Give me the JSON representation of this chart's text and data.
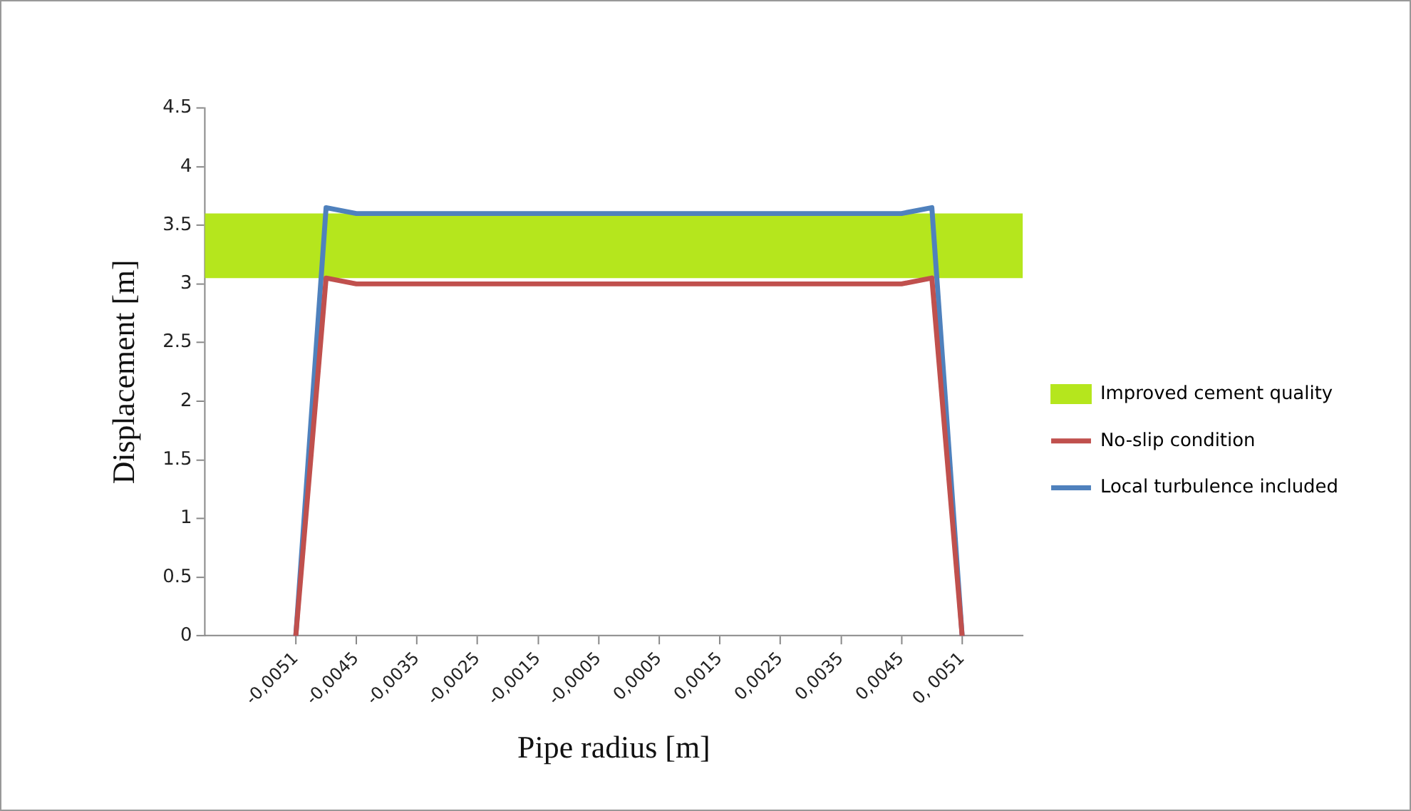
{
  "chart_data": {
    "type": "line",
    "xlabel": "Pipe radius [m]",
    "ylabel": "Displacement [m]",
    "categories": [
      null,
      null,
      null,
      "-0,0051",
      null,
      "-0,0045",
      null,
      "-0,0035",
      null,
      "-0,0025",
      null,
      "-0,0015",
      null,
      "-0,0005",
      null,
      "0,0005",
      null,
      "0,0015",
      null,
      "0,0025",
      null,
      "0,0035",
      null,
      "0,0045",
      null,
      "0, 0051",
      null,
      null
    ],
    "series": [
      {
        "name": "No-slip condition",
        "type": "line",
        "color": "#c0504d",
        "values": [
          null,
          null,
          null,
          0,
          3.05,
          3.0,
          3.0,
          3.0,
          3.0,
          3.0,
          3.0,
          3.0,
          3.0,
          3.0,
          3.0,
          3.0,
          3.0,
          3.0,
          3.0,
          3.0,
          3.0,
          3.0,
          3.0,
          3.0,
          3.05,
          0,
          null,
          null
        ]
      },
      {
        "name": "Local turbulence included",
        "type": "line",
        "color": "#4f81bd",
        "values": [
          null,
          null,
          null,
          0,
          3.65,
          3.6,
          3.6,
          3.6,
          3.6,
          3.6,
          3.6,
          3.6,
          3.6,
          3.6,
          3.6,
          3.6,
          3.6,
          3.6,
          3.6,
          3.6,
          3.6,
          3.6,
          3.6,
          3.6,
          3.65,
          0,
          null,
          null
        ]
      }
    ],
    "bands": [
      {
        "axis": "y",
        "from": 3.05,
        "to": 3.6,
        "label": "Improved cement quality",
        "color": "#b5e61d"
      }
    ],
    "ylim": [
      0,
      4.5
    ],
    "yticks": [
      0,
      0.5,
      1,
      1.5,
      2,
      2.5,
      3,
      3.5,
      4,
      4.5
    ],
    "grid": false,
    "legend": "right",
    "marker": "none",
    "line_style": "solid"
  }
}
